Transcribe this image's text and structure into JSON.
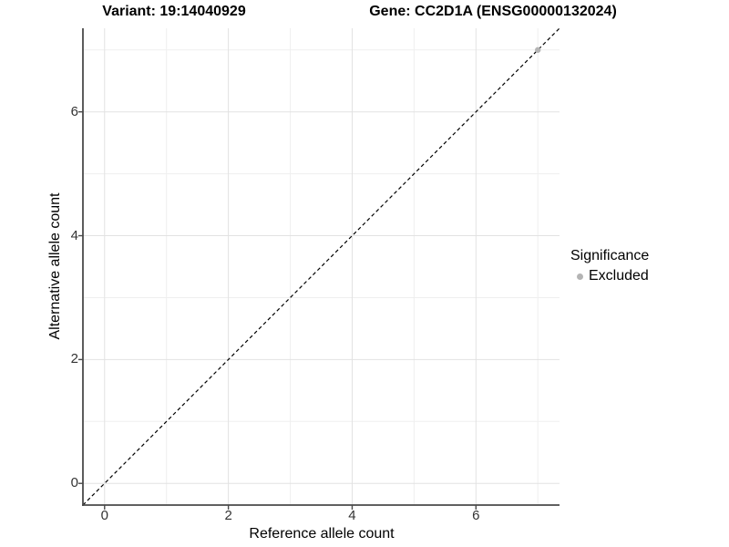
{
  "header": {
    "variant_title": "Variant: 19:14040929",
    "gene_title": "Gene: CC2D1A (ENSG00000132024)"
  },
  "chart_data": {
    "type": "scatter",
    "xlabel": "Reference allele count",
    "ylabel": "Alternative allele count",
    "xlim": [
      -0.35,
      7.35
    ],
    "ylim": [
      -0.35,
      7.35
    ],
    "x_major_ticks": [
      0,
      2,
      4,
      6
    ],
    "y_major_ticks": [
      0,
      2,
      4,
      6
    ],
    "minor_breaks": [
      1,
      3,
      5,
      7
    ],
    "grid": "on",
    "identity_line": {
      "style": "dashed",
      "color": "#000000",
      "from": [
        -0.35,
        -0.35
      ],
      "to": [
        7.35,
        7.35
      ]
    },
    "series": [
      {
        "name": "Excluded",
        "color": "#b4b4b4",
        "marker": "circle",
        "points": [
          {
            "x": 7,
            "y": 7
          }
        ]
      }
    ],
    "legend": {
      "title": "Significance",
      "position": "right",
      "entries": [
        {
          "label": "Excluded",
          "color": "#b4b4b4",
          "marker": "circle"
        }
      ]
    },
    "colors": {
      "axis": "#4a4a4a",
      "grid_major": "#e2e2e2",
      "grid_minor": "#efefef",
      "tick_text": "#333333"
    }
  }
}
